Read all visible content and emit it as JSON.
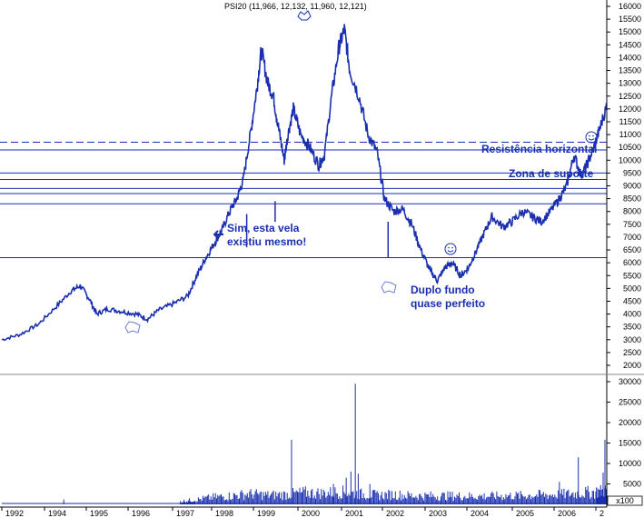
{
  "chart_data": {
    "type": "line",
    "title": "PSI20 (11,966, 12,132, 11,960, 12,121)",
    "x_tick_labels": [
      "1992",
      "1994",
      "1995",
      "1996",
      "1997",
      "1998",
      "1999",
      "2000",
      "2001",
      "2002",
      "2003",
      "2004",
      "2005",
      "2006",
      "2"
    ],
    "price_axis": {
      "ylim": [
        2000,
        16200
      ],
      "ticks": [
        2000,
        2500,
        3000,
        3500,
        4000,
        4500,
        5000,
        5500,
        6000,
        6500,
        7000,
        7500,
        8000,
        8500,
        9000,
        9500,
        10000,
        10500,
        11000,
        11500,
        12000,
        12500,
        13000,
        13500,
        14000,
        14500,
        15000,
        15500,
        16000
      ]
    },
    "volume_axis": {
      "ylim": [
        0,
        31000
      ],
      "ticks": [
        5000,
        10000,
        15000,
        20000,
        25000,
        30000
      ],
      "multiplier_label": "x100"
    },
    "price_series": [
      [
        1992.0,
        3000
      ],
      [
        1992.5,
        3200
      ],
      [
        1993.0,
        3600
      ],
      [
        1993.5,
        4300
      ],
      [
        1993.9,
        4900
      ],
      [
        1994.15,
        5100
      ],
      [
        1994.4,
        4600
      ],
      [
        1994.6,
        4000
      ],
      [
        1994.9,
        4200
      ],
      [
        1995.3,
        4100
      ],
      [
        1995.7,
        4000
      ],
      [
        1996.0,
        3800
      ],
      [
        1996.3,
        4150
      ],
      [
        1996.7,
        4400
      ],
      [
        1997.1,
        4700
      ],
      [
        1997.35,
        5500
      ],
      [
        1997.6,
        6200
      ],
      [
        1997.85,
        6800
      ],
      [
        1998.05,
        7300
      ],
      [
        1998.25,
        8000
      ],
      [
        1998.45,
        8500
      ],
      [
        1998.62,
        9200
      ],
      [
        1998.82,
        11000
      ],
      [
        1999.0,
        12800
      ],
      [
        1999.12,
        14300
      ],
      [
        1999.3,
        13000
      ],
      [
        1999.45,
        12500
      ],
      [
        1999.6,
        11200
      ],
      [
        1999.75,
        10000
      ],
      [
        1999.85,
        11000
      ],
      [
        2000.0,
        12000
      ],
      [
        2000.2,
        11000
      ],
      [
        2000.45,
        10500
      ],
      [
        2000.7,
        9800
      ],
      [
        2000.85,
        10200
      ],
      [
        2001.05,
        12500
      ],
      [
        2001.25,
        14400
      ],
      [
        2001.4,
        15100
      ],
      [
        2001.55,
        13500
      ],
      [
        2001.8,
        12500
      ],
      [
        2002.05,
        11000
      ],
      [
        2002.3,
        10300
      ],
      [
        2002.5,
        8500
      ],
      [
        2002.75,
        8000
      ],
      [
        2003.0,
        8100
      ],
      [
        2003.25,
        7500
      ],
      [
        2003.5,
        6500
      ],
      [
        2003.75,
        5700
      ],
      [
        2003.95,
        5300
      ],
      [
        2004.15,
        5800
      ],
      [
        2004.35,
        6000
      ],
      [
        2004.6,
        5500
      ],
      [
        2004.8,
        5800
      ],
      [
        2005.0,
        6400
      ],
      [
        2005.25,
        7200
      ],
      [
        2005.45,
        7800
      ],
      [
        2005.75,
        7400
      ],
      [
        2006.0,
        7600
      ],
      [
        2006.3,
        8000
      ],
      [
        2006.55,
        7800
      ],
      [
        2006.8,
        7600
      ],
      [
        2007.05,
        8000
      ],
      [
        2007.3,
        8500
      ],
      [
        2007.5,
        9000
      ],
      [
        2007.7,
        10200
      ],
      [
        2007.9,
        9400
      ],
      [
        2008.05,
        9800
      ],
      [
        2008.25,
        10500
      ],
      [
        2008.4,
        11200
      ],
      [
        2008.6,
        12121
      ]
    ],
    "price_spikes": [
      [
        1998.72,
        6600,
        7900
      ],
      [
        1999.5,
        7600,
        8400
      ],
      [
        2002.6,
        6200,
        7600
      ]
    ],
    "horizontal_lines": [
      {
        "y": 10700,
        "style": "dashed"
      },
      {
        "y": 10400,
        "style": "solid"
      },
      {
        "y": 9500,
        "style": "solid"
      },
      {
        "y": 9250,
        "style": "solid"
      },
      {
        "y": 8900,
        "style": "solid"
      },
      {
        "y": 8700,
        "style": "solid"
      },
      {
        "y": 8300,
        "style": "solid"
      },
      {
        "y": 6200,
        "style": "solid"
      }
    ],
    "volume_series": [
      [
        1996.9,
        900
      ],
      [
        1997.3,
        1400
      ],
      [
        1997.8,
        2200
      ],
      [
        1998.3,
        2600
      ],
      [
        1998.8,
        3200
      ],
      [
        1999.3,
        2800
      ],
      [
        1999.8,
        3000
      ],
      [
        2000.3,
        3600
      ],
      [
        2000.8,
        3400
      ],
      [
        2001.3,
        3800
      ],
      [
        2001.8,
        3200
      ],
      [
        2002.3,
        2800
      ],
      [
        2002.8,
        3000
      ],
      [
        2003.3,
        2600
      ],
      [
        2003.8,
        2600
      ],
      [
        2004.3,
        2600
      ],
      [
        2004.8,
        2500
      ],
      [
        2005.3,
        2500
      ],
      [
        2005.8,
        2600
      ],
      [
        2006.3,
        2700
      ],
      [
        2006.8,
        2900
      ],
      [
        2007.3,
        3000
      ],
      [
        2007.8,
        3400
      ],
      [
        2008.3,
        3800
      ],
      [
        2008.6,
        4200
      ]
    ],
    "volume_spikes": [
      [
        1993.7,
        1200
      ],
      [
        1999.95,
        15800
      ],
      [
        2001.1,
        5000
      ],
      [
        2001.45,
        6500
      ],
      [
        2001.58,
        8000
      ],
      [
        2001.7,
        29500
      ],
      [
        2001.78,
        7500
      ],
      [
        2002.1,
        5000
      ],
      [
        2007.3,
        5500
      ],
      [
        2007.82,
        11500
      ],
      [
        2008.5,
        7800
      ],
      [
        2008.55,
        15800
      ]
    ],
    "annotations": [
      {
        "key": "candle",
        "text_lines": [
          "Sim, esta vela",
          "existiu mesmo!"
        ]
      },
      {
        "key": "resistance",
        "text_lines": [
          "Resistência horizontal"
        ]
      },
      {
        "key": "support",
        "text_lines": [
          "Zona de suporte"
        ]
      },
      {
        "key": "double_bottom",
        "text_lines": [
          "Duplo fundo",
          "quase perfeito"
        ]
      }
    ]
  },
  "colors": {
    "series": "#1a2fb0",
    "grid_lines": "#1a2fb0",
    "text": "#000000",
    "annotation": "#1a2fb0"
  }
}
